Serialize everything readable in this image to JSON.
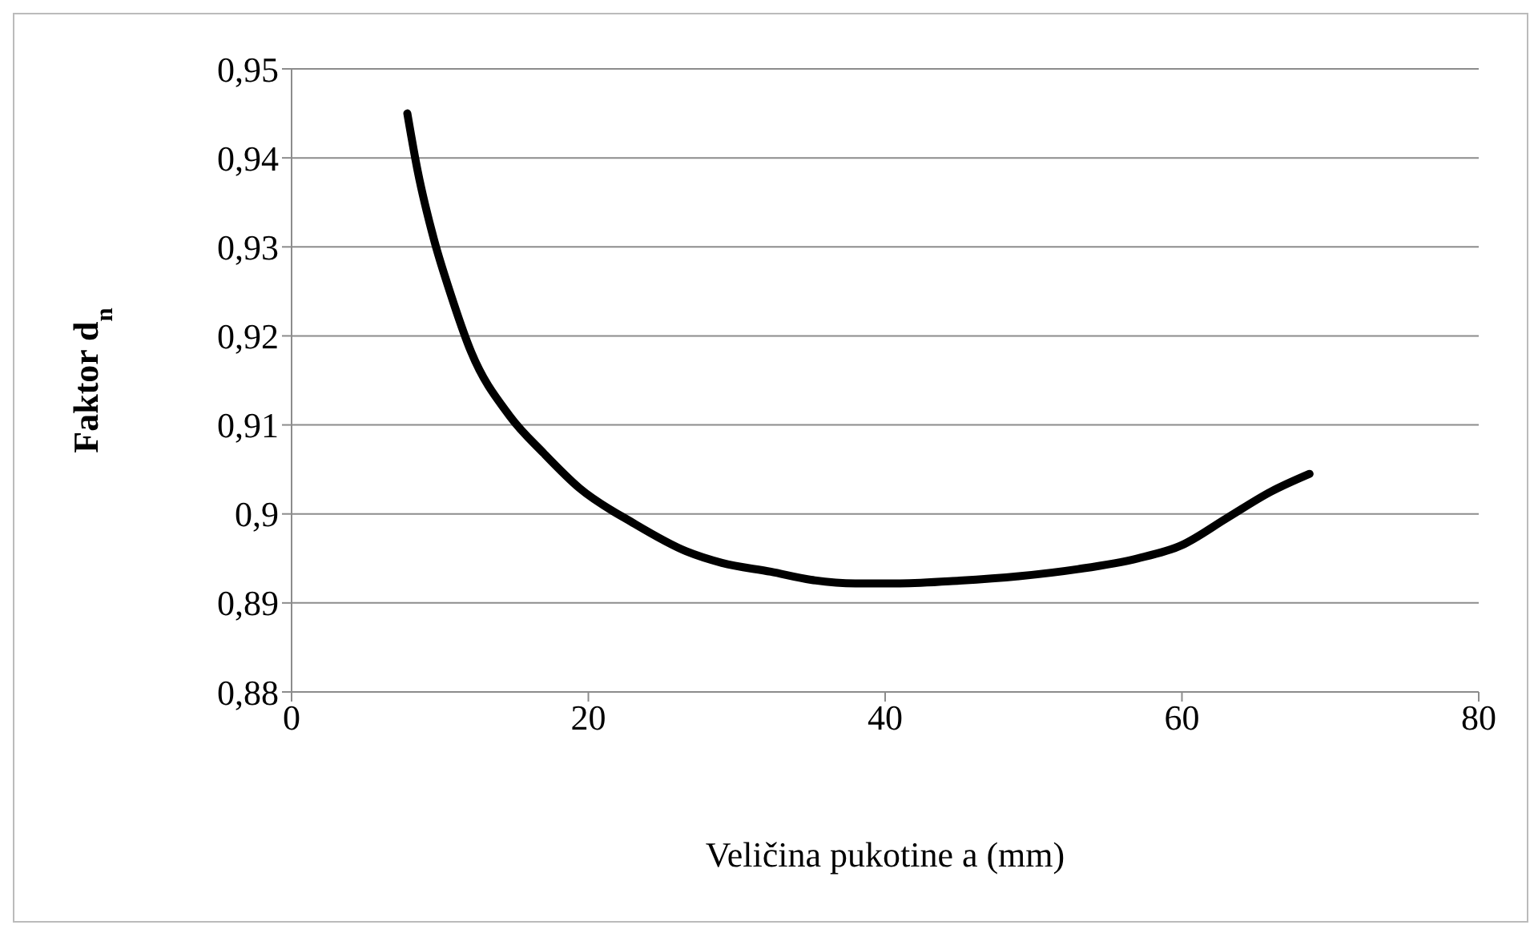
{
  "chart_data": {
    "type": "line",
    "xlabel": "Veličina pukotine a (mm)",
    "ylabel": "Faktor d$_{n}$",
    "xlim": [
      0,
      80
    ],
    "xticks": [
      0,
      20,
      40,
      60,
      80
    ],
    "ylim": [
      0.88,
      0.95
    ],
    "yticks": [
      {
        "value": 0.88,
        "label": "0,88"
      },
      {
        "value": 0.89,
        "label": "0,89"
      },
      {
        "value": 0.9,
        "label": "0,9"
      },
      {
        "value": 0.91,
        "label": "0,91"
      },
      {
        "value": 0.92,
        "label": "0,92"
      },
      {
        "value": 0.93,
        "label": "0,93"
      },
      {
        "value": 0.94,
        "label": "0,94"
      },
      {
        "value": 0.95,
        "label": "0,95"
      }
    ],
    "grid": "y",
    "legend": false,
    "marker": "none",
    "line_style": "solid",
    "series": [
      {
        "color": "#000000",
        "x": [
          7.8,
          8.5,
          9.6,
          10.7,
          12.1,
          14.7,
          17,
          19.4,
          23,
          26.6,
          29,
          32.3,
          35,
          38,
          41,
          45,
          49,
          53,
          57,
          60,
          63,
          66,
          68.6
        ],
        "values": [
          0.945,
          0.9385,
          0.9308,
          0.9248,
          0.9182,
          0.911,
          0.9068,
          0.9029,
          0.899,
          0.8958,
          0.8945,
          0.8935,
          0.8926,
          0.8922,
          0.8922,
          0.8925,
          0.893,
          0.8938,
          0.895,
          0.8965,
          0.8995,
          0.9025,
          0.9045
        ]
      }
    ]
  }
}
